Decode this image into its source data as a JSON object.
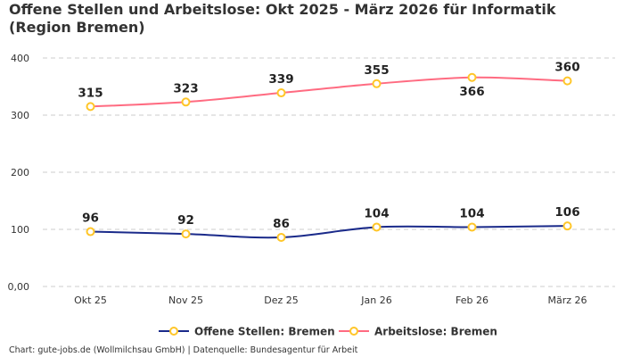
{
  "chart_data": {
    "type": "line",
    "title": "Offene Stellen und Arbeitslose: Okt 2025 - März 2026 für Informatik (Region Bremen)",
    "categories": [
      "Okt 25",
      "Nov 25",
      "Dez 25",
      "Jan 26",
      "Feb 26",
      "März 26"
    ],
    "series": [
      {
        "name": "Offene Stellen: Bremen",
        "values": [
          96,
          92,
          86,
          104,
          104,
          106
        ],
        "color": "#1a2a8a"
      },
      {
        "name": "Arbeitslose: Bremen",
        "values": [
          315,
          323,
          339,
          355,
          366,
          360
        ],
        "color": "#ff6b81"
      }
    ],
    "marker_color": "#ffc629",
    "ylim": [
      0,
      400
    ],
    "yticks": [
      {
        "v": 0,
        "label": "0,00"
      },
      {
        "v": 100,
        "label": "100"
      },
      {
        "v": 200,
        "label": "200"
      },
      {
        "v": 300,
        "label": "300"
      },
      {
        "v": 400,
        "label": "400"
      }
    ],
    "grid": true,
    "legend_position": "bottom",
    "xlabel": "",
    "ylabel": ""
  },
  "footer": "Chart: gute-jobs.de (Wollmilchsau GmbH) | Datenquelle: Bundesagentur für Arbeit"
}
